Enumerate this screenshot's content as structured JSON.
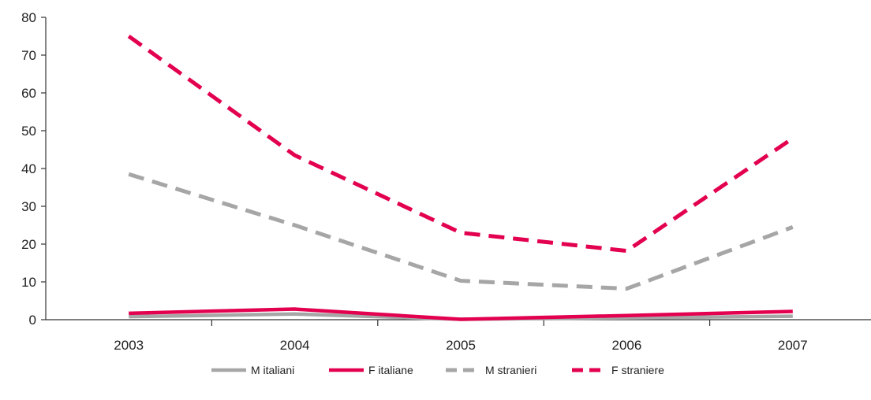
{
  "chart_data": {
    "type": "line",
    "title": "",
    "xlabel": "",
    "ylabel": "",
    "categories": [
      "2003",
      "2004",
      "2005",
      "2006",
      "2007"
    ],
    "ylim": [
      0,
      80
    ],
    "yticks": [
      "0",
      "10",
      "20",
      "30",
      "40",
      "50",
      "60",
      "70",
      "80"
    ],
    "grid": false,
    "legend_position": "bottom-center",
    "series": [
      {
        "name": "M italiani",
        "values": [
          0.8,
          1.5,
          0.1,
          0.5,
          0.9
        ],
        "color": "#a6a6a6",
        "style": "solid"
      },
      {
        "name": "F italiane",
        "values": [
          1.7,
          2.8,
          0.1,
          1.1,
          2.2
        ],
        "color": "#e2004f",
        "style": "solid"
      },
      {
        "name": "M stranieri",
        "values": [
          38.5,
          25,
          10.3,
          8.2,
          24.5
        ],
        "color": "#a6a6a6",
        "style": "dashed"
      },
      {
        "name": "F straniere",
        "values": [
          75,
          43.5,
          23,
          18.2,
          48
        ],
        "color": "#e2004f",
        "style": "dashed"
      }
    ]
  }
}
